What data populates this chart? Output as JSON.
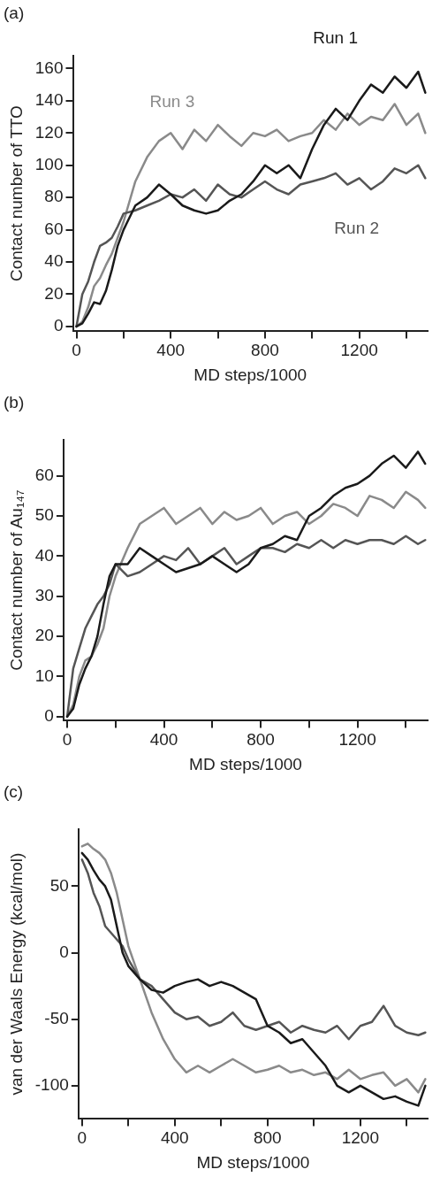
{
  "chart_data": [
    {
      "type": "line",
      "title": "(a)",
      "xlabel": "MD steps/1000",
      "ylabel": "Contact number of TTO",
      "x": [
        0,
        25,
        50,
        75,
        100,
        125,
        150,
        175,
        200,
        250,
        300,
        350,
        400,
        450,
        500,
        550,
        600,
        650,
        700,
        750,
        800,
        850,
        900,
        950,
        1000,
        1050,
        1100,
        1150,
        1200,
        1250,
        1300,
        1350,
        1400,
        1450,
        1480
      ],
      "series": [
        {
          "name": "Run 1",
          "color": "#1a1a1a",
          "values": [
            0,
            2,
            8,
            15,
            14,
            22,
            35,
            50,
            60,
            75,
            80,
            88,
            82,
            75,
            72,
            70,
            72,
            78,
            82,
            90,
            100,
            95,
            100,
            92,
            110,
            125,
            135,
            128,
            140,
            150,
            145,
            155,
            148,
            158,
            145
          ]
        },
        {
          "name": "Run 2",
          "color": "#555555",
          "values": [
            0,
            20,
            28,
            40,
            50,
            52,
            55,
            62,
            70,
            72,
            75,
            78,
            82,
            80,
            85,
            78,
            88,
            82,
            80,
            85,
            90,
            85,
            82,
            88,
            90,
            92,
            95,
            88,
            92,
            85,
            90,
            98,
            95,
            100,
            92
          ]
        },
        {
          "name": "Run 3",
          "color": "#8a8a8a",
          "values": [
            0,
            3,
            12,
            25,
            30,
            38,
            45,
            55,
            65,
            90,
            105,
            115,
            120,
            110,
            122,
            115,
            125,
            118,
            112,
            120,
            118,
            122,
            115,
            118,
            120,
            128,
            122,
            132,
            125,
            130,
            128,
            138,
            125,
            132,
            120
          ]
        }
      ],
      "xlim": [
        -15,
        1490
      ],
      "ylim": [
        -3,
        168
      ],
      "xticks": [
        0,
        {
          "value": 200,
          "label": null
        },
        400,
        {
          "value": 600,
          "label": null
        },
        800,
        {
          "value": 1000,
          "label": null
        },
        1200,
        {
          "value": 1400,
          "label": null
        }
      ],
      "yticks": [
        0,
        20,
        40,
        60,
        80,
        100,
        120,
        140,
        160
      ],
      "grid": false,
      "legend": false,
      "marker": "none",
      "line_style": "solid"
    },
    {
      "type": "line",
      "title": "(b)",
      "xlabel": "MD steps/1000",
      "ylabel": "Contact number of Au₁₄₇",
      "x": [
        0,
        25,
        50,
        75,
        100,
        125,
        150,
        175,
        200,
        250,
        300,
        350,
        400,
        450,
        500,
        550,
        600,
        650,
        700,
        750,
        800,
        850,
        900,
        950,
        1000,
        1050,
        1100,
        1150,
        1200,
        1250,
        1300,
        1350,
        1400,
        1450,
        1480
      ],
      "series": [
        {
          "color": "#1a1a1a",
          "values": [
            0,
            2,
            8,
            12,
            15,
            20,
            28,
            35,
            38,
            38,
            42,
            40,
            38,
            36,
            37,
            38,
            40,
            38,
            36,
            38,
            42,
            43,
            45,
            44,
            50,
            52,
            55,
            57,
            58,
            60,
            63,
            65,
            62,
            66,
            63
          ]
        },
        {
          "color": "#555555",
          "values": [
            0,
            12,
            17,
            22,
            25,
            28,
            30,
            33,
            38,
            35,
            36,
            38,
            40,
            39,
            42,
            38,
            40,
            42,
            38,
            40,
            42,
            42,
            41,
            43,
            42,
            44,
            42,
            44,
            43,
            44,
            44,
            43,
            45,
            43,
            44
          ]
        },
        {
          "color": "#8a8a8a",
          "values": [
            0,
            3,
            10,
            14,
            15,
            18,
            22,
            30,
            35,
            42,
            48,
            50,
            52,
            48,
            50,
            52,
            48,
            51,
            49,
            50,
            52,
            48,
            50,
            51,
            48,
            50,
            53,
            52,
            50,
            55,
            54,
            52,
            56,
            54,
            52
          ]
        }
      ],
      "xlim": [
        -15,
        1490
      ],
      "ylim": [
        -1,
        69
      ],
      "xticks": [
        0,
        {
          "value": 200,
          "label": null
        },
        400,
        {
          "value": 600,
          "label": null
        },
        800,
        {
          "value": 1000,
          "label": null
        },
        1200,
        {
          "value": 1400,
          "label": null
        }
      ],
      "yticks": [
        0,
        10,
        20,
        30,
        40,
        50,
        60
      ],
      "grid": false,
      "legend": false,
      "marker": "none",
      "line_style": "solid"
    },
    {
      "type": "line",
      "title": "(c)",
      "xlabel": "MD steps/1000",
      "ylabel": "van der Waals Energy (kcal/mol)",
      "x": [
        0,
        25,
        50,
        75,
        100,
        125,
        150,
        175,
        200,
        250,
        300,
        350,
        400,
        450,
        500,
        550,
        600,
        650,
        700,
        750,
        800,
        850,
        900,
        950,
        1000,
        1050,
        1100,
        1150,
        1200,
        1250,
        1300,
        1350,
        1400,
        1450,
        1480
      ],
      "series": [
        {
          "color": "#1a1a1a",
          "values": [
            75,
            70,
            62,
            55,
            50,
            40,
            20,
            0,
            -10,
            -20,
            -28,
            -30,
            -25,
            -22,
            -20,
            -25,
            -22,
            -25,
            -30,
            -35,
            -55,
            -60,
            -68,
            -65,
            -75,
            -85,
            -100,
            -105,
            -100,
            -105,
            -110,
            -108,
            -112,
            -115,
            -100
          ]
        },
        {
          "color": "#555555",
          "values": [
            70,
            60,
            45,
            35,
            20,
            15,
            10,
            5,
            -5,
            -20,
            -25,
            -35,
            -45,
            -50,
            -48,
            -55,
            -52,
            -45,
            -55,
            -58,
            -55,
            -52,
            -60,
            -55,
            -58,
            -60,
            -55,
            -65,
            -55,
            -52,
            -40,
            -55,
            -60,
            -62,
            -60
          ]
        },
        {
          "color": "#8a8a8a",
          "values": [
            80,
            82,
            78,
            75,
            70,
            60,
            45,
            25,
            5,
            -20,
            -45,
            -65,
            -80,
            -90,
            -85,
            -90,
            -85,
            -80,
            -85,
            -90,
            -88,
            -85,
            -90,
            -88,
            -92,
            -90,
            -95,
            -88,
            -95,
            -92,
            -90,
            -100,
            -95,
            -105,
            -95
          ]
        }
      ],
      "xlim": [
        -15,
        1490
      ],
      "ylim": [
        -125,
        93
      ],
      "xticks": [
        0,
        {
          "value": 200,
          "label": null
        },
        400,
        {
          "value": 600,
          "label": null
        },
        800,
        {
          "value": 1000,
          "label": null
        },
        1200,
        {
          "value": 1400,
          "label": null
        }
      ],
      "yticks": [
        -100,
        -50,
        0,
        50
      ],
      "grid": false,
      "legend": false,
      "marker": "none",
      "line_style": "solid"
    }
  ]
}
